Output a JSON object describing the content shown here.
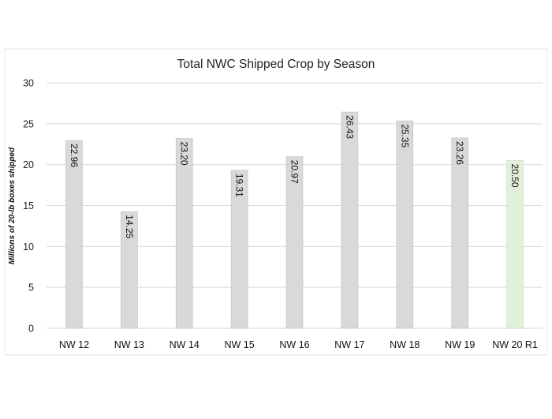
{
  "chart_data": {
    "type": "bar",
    "title": "Total NWC Shipped Crop by Season",
    "xlabel": "",
    "ylabel": "Millions of 20-lb boxes shipped",
    "categories": [
      "NW 12",
      "NW 13",
      "NW 14",
      "NW 15",
      "NW 16",
      "NW 17",
      "NW 18",
      "NW 19",
      "NW 20 R1"
    ],
    "values": [
      22.96,
      14.25,
      23.2,
      19.31,
      20.97,
      26.43,
      25.35,
      23.26,
      20.5
    ],
    "data_labels": [
      "22.96",
      "14.25",
      "23.20",
      "19.31",
      "20.97",
      "26.43",
      "25.35",
      "23.26",
      "20.50"
    ],
    "ylim": [
      0,
      30
    ],
    "yticks": [
      0,
      5,
      10,
      15,
      20,
      25,
      30
    ],
    "grid": true,
    "legend": "none",
    "colors": {
      "bar": "#d9d9d9",
      "bar_highlight": "#e2efd9",
      "bar_edge": "#bfbfbf",
      "highlight_edge": "#c5dcb8",
      "grid": "#d9d9d9",
      "border": "#e6e6e6"
    },
    "highlight_index": 8
  }
}
